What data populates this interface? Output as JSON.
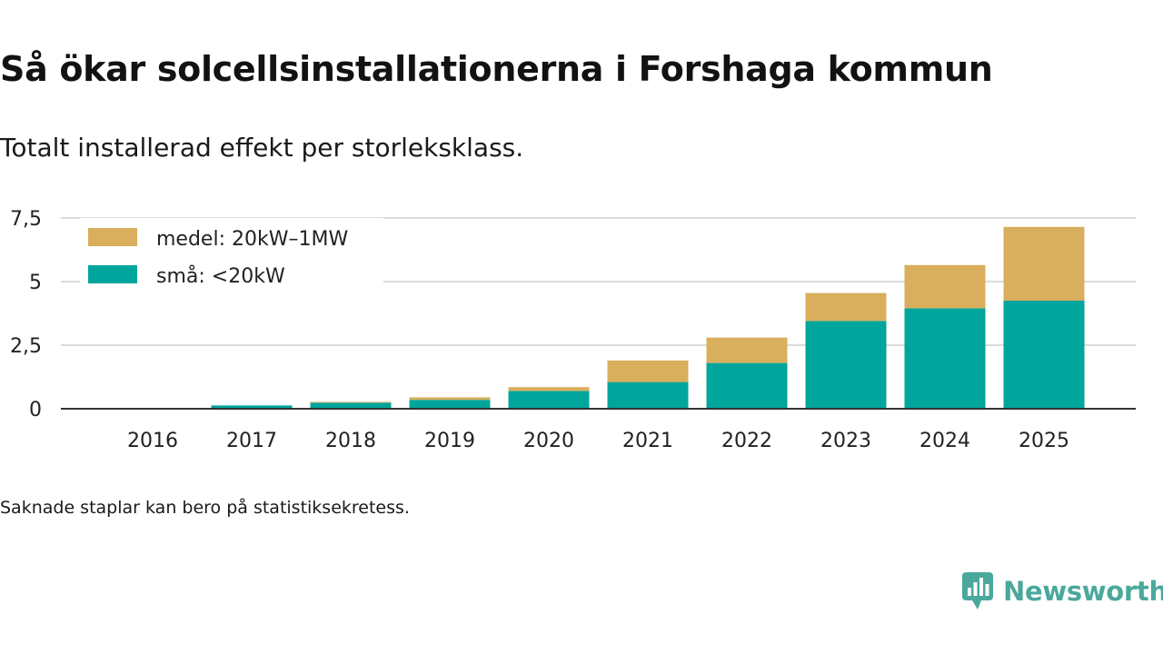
{
  "title": "Så ökar solcellsinstallationerna i Forshaga kommun",
  "subtitle": "Totalt installerad effekt per storleksklass.",
  "footnote": "Saknade staplar kan bero på statistiksekretess.",
  "brand": {
    "name": "Newsworthy",
    "icon": "chart-bubble-icon",
    "color": "#4aa89c"
  },
  "chart_data": {
    "type": "bar",
    "stacked": true,
    "categories": [
      "2016",
      "2017",
      "2018",
      "2019",
      "2020",
      "2021",
      "2022",
      "2023",
      "2024",
      "2025"
    ],
    "series": [
      {
        "name": "små: <20kW",
        "color": "#00a59b",
        "values": [
          0.02,
          0.13,
          0.24,
          0.35,
          0.7,
          1.05,
          1.8,
          3.45,
          3.95,
          4.25
        ]
      },
      {
        "name": "medel: 20kW–1MW",
        "color": "#d9ae5d",
        "values": [
          0,
          0,
          0.03,
          0.1,
          0.15,
          0.85,
          1.0,
          1.1,
          1.7,
          2.9
        ]
      }
    ],
    "legend_order": [
      "medel: 20kW–1MW",
      "små: <20kW"
    ],
    "yticks": [
      0,
      2.5,
      5,
      7.5
    ],
    "ytick_labels": [
      "0",
      "2,5",
      "5",
      "7,5"
    ],
    "ylim": [
      0,
      7.5
    ],
    "xlabel": "",
    "ylabel": "",
    "grid": true,
    "legend_position": "top-left"
  }
}
